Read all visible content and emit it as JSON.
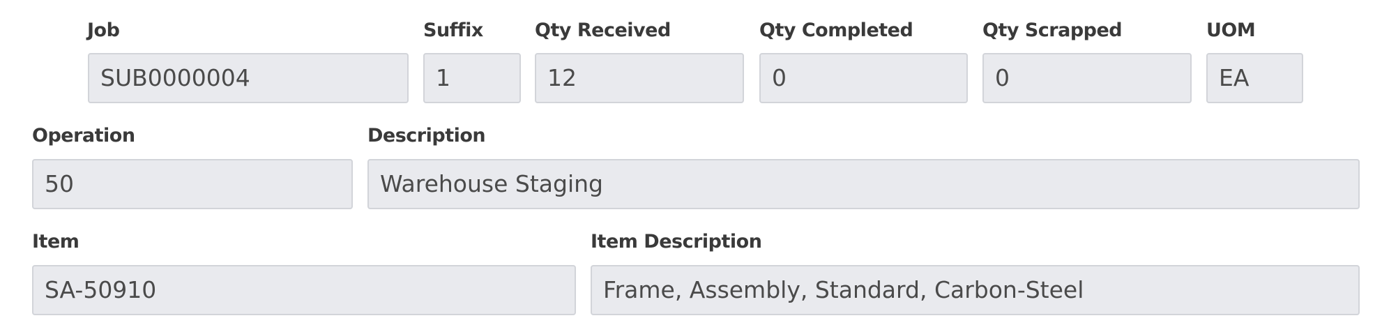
{
  "row1": {
    "job": {
      "label": "Job",
      "value": "SUB0000004"
    },
    "suffix": {
      "label": "Suffix",
      "value": "1"
    },
    "qty_received": {
      "label": "Qty Received",
      "value": "12"
    },
    "qty_completed": {
      "label": "Qty Completed",
      "value": "0"
    },
    "qty_scrapped": {
      "label": "Qty Scrapped",
      "value": "0"
    },
    "uom": {
      "label": "UOM",
      "value": "EA"
    }
  },
  "row2": {
    "operation": {
      "label": "Operation",
      "value": "50"
    },
    "description": {
      "label": "Description",
      "value": "Warehouse Staging"
    }
  },
  "row3": {
    "item": {
      "label": "Item",
      "value": "SA-50910"
    },
    "item_description": {
      "label": "Item Description",
      "value": "Frame, Assembly, Standard, Carbon-Steel"
    }
  },
  "colors": {
    "field_bg": "#e9eaee",
    "field_border": "#d2d4d9",
    "label": "#3a3a3a",
    "value": "#4a4a4a"
  }
}
